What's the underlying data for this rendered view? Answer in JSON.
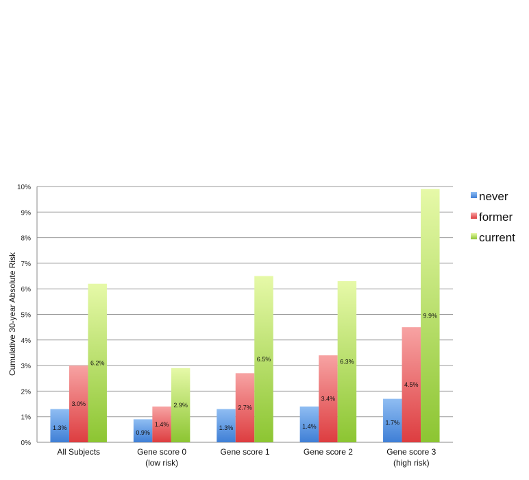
{
  "chart_data": {
    "type": "bar",
    "title": "",
    "xlabel": "",
    "ylabel": "Cumulative 30-year  Absolute Risk",
    "ylim": [
      0,
      10
    ],
    "yticks": [
      "0%",
      "1%",
      "2%",
      "3%",
      "4%",
      "5%",
      "6%",
      "7%",
      "8%",
      "9%",
      "10%"
    ],
    "grid": true,
    "legend_position": "right",
    "categories": [
      [
        "All Subjects"
      ],
      [
        "Gene score 0",
        "(low risk)"
      ],
      [
        "Gene score 1"
      ],
      [
        "Gene score 2"
      ],
      [
        "Gene score 3",
        "(high risk)"
      ]
    ],
    "series": [
      {
        "name": "never",
        "color": "#5b93e0",
        "values": [
          1.3,
          0.9,
          1.3,
          1.4,
          1.7
        ],
        "labels": [
          "1.3%",
          "0.9%",
          "1.3%",
          "1.4%",
          "1.7%"
        ]
      },
      {
        "name": "former",
        "color": "#e8595c",
        "values": [
          3.0,
          1.4,
          2.7,
          3.4,
          4.5
        ],
        "labels": [
          "3.0%",
          "1.4%",
          "2.7%",
          "3.4%",
          "4.5%"
        ]
      },
      {
        "name": "current",
        "color": "#9ccc3c",
        "values": [
          6.2,
          2.9,
          6.5,
          6.3,
          9.9
        ],
        "labels": [
          "6.2%",
          "2.9%",
          "6.5%",
          "6.3%",
          "9.9%"
        ]
      }
    ]
  }
}
